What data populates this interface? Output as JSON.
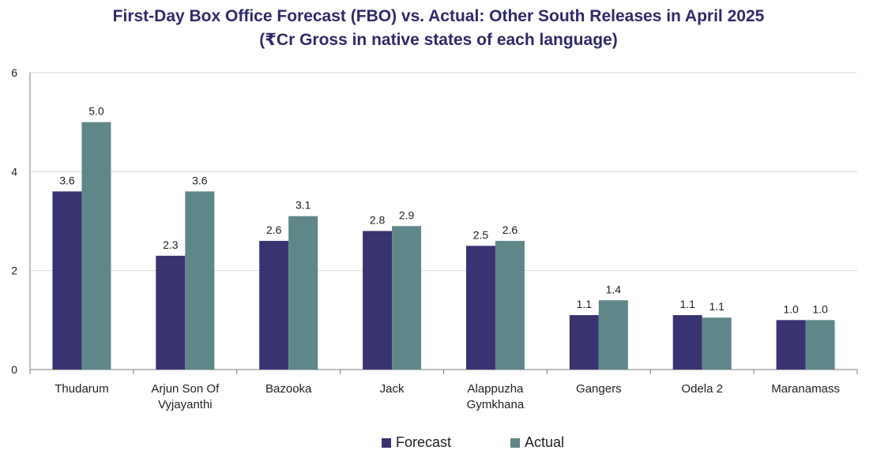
{
  "colors": {
    "forecast": "#393372",
    "actual": "#5f8789",
    "grid": "#d9d9d9",
    "axis": "#7f7f7f"
  },
  "chart_data": {
    "type": "bar",
    "title": "First-Day Box Office Forecast (FBO) vs. Actual: Other South Releases in April 2025",
    "subtitle": "(₹Cr Gross in native states of each language)",
    "categories": [
      [
        "Thudarum"
      ],
      [
        "Arjun Son Of",
        "Vyjayanthi"
      ],
      [
        "Bazooka"
      ],
      [
        "Jack"
      ],
      [
        "Alappuzha",
        "Gymkhana"
      ],
      [
        "Gangers"
      ],
      [
        "Odela 2"
      ],
      [
        "Maranamass"
      ]
    ],
    "series": [
      {
        "name": "Forecast",
        "values": [
          3.6,
          2.3,
          2.6,
          2.8,
          2.5,
          1.1,
          1.1,
          1.0
        ],
        "labels": [
          "3.6",
          "2.3",
          "2.6",
          "2.8",
          "2.5",
          "1.1",
          "1.1",
          "1.0"
        ]
      },
      {
        "name": "Actual",
        "values": [
          5.0,
          3.6,
          3.1,
          2.9,
          2.6,
          1.4,
          1.05,
          1.0
        ],
        "labels": [
          "5.0",
          "3.6",
          "3.1",
          "2.9",
          "2.6",
          "1.4",
          "1.1",
          "1.0"
        ]
      }
    ],
    "ylim": [
      0,
      6
    ],
    "yticks": [
      0,
      2,
      4,
      6
    ],
    "xlabel": "",
    "ylabel": "",
    "grid": true,
    "legend": "bottom-center"
  }
}
